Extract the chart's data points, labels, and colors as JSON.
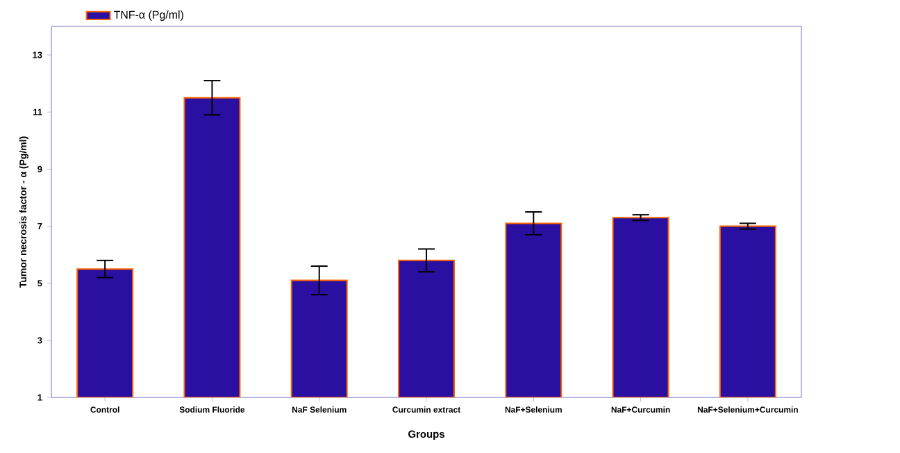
{
  "chart_data": {
    "type": "bar",
    "xlabel": "Groups",
    "ylabel": "Tumor necrosis factor - α (Pg/ml)",
    "categories": [
      "Control",
      "Sodium Fluoride",
      "NaF  Selenium",
      "Curcumin extract",
      "NaF+Selenium",
      "NaF+Curcumin",
      "NaF+Selenium+Curcumin"
    ],
    "series": [
      {
        "name": "TNF-α (Pg/ml)",
        "color": "#2b0fa0",
        "values": [
          5.5,
          11.5,
          5.1,
          5.8,
          7.1,
          7.3,
          7.0
        ],
        "errors": [
          0.3,
          0.6,
          0.5,
          0.4,
          0.4,
          0.1,
          0.1
        ]
      }
    ],
    "ylim": [
      1,
      14
    ],
    "yticks": [
      1,
      3,
      5,
      7,
      9,
      11,
      13
    ],
    "grid": false,
    "legend": "top left"
  }
}
